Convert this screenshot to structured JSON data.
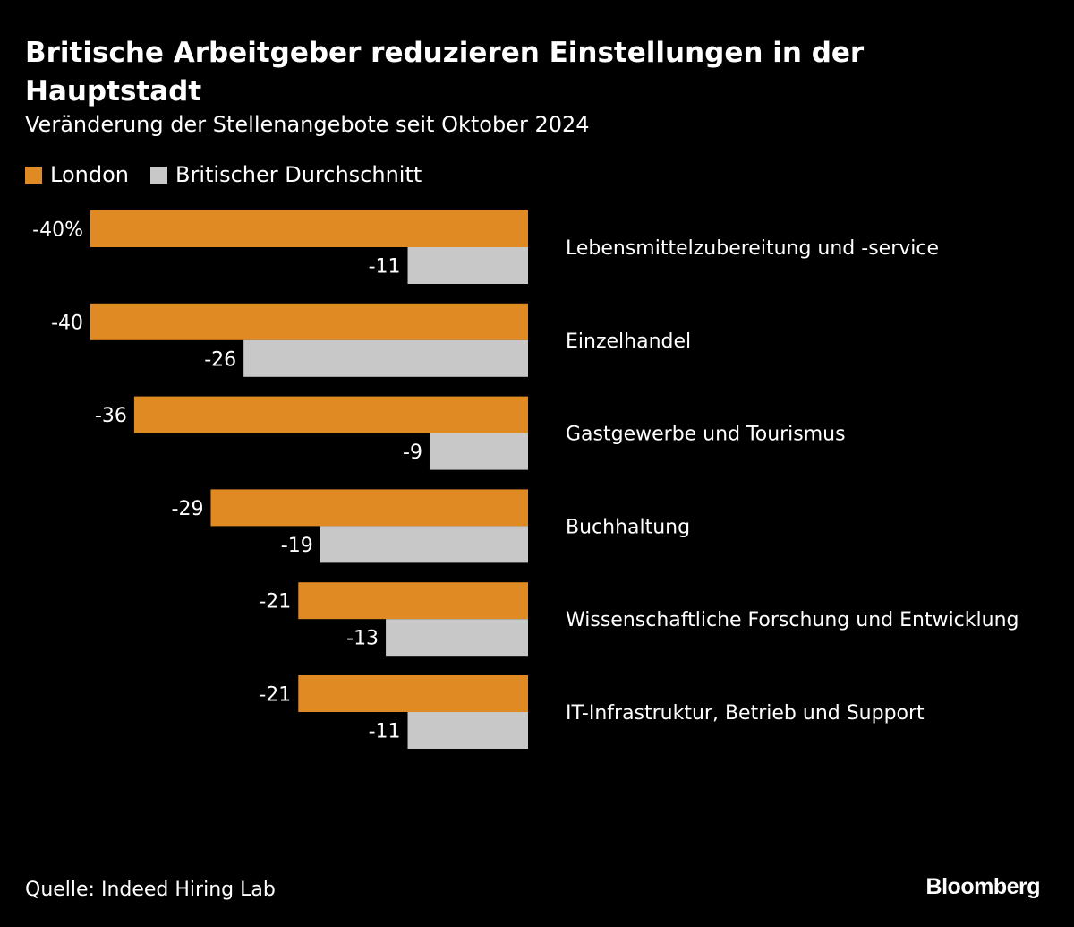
{
  "header": {
    "title": "Britische Arbeitgeber reduzieren Einstellungen in der Hauptstadt",
    "subtitle": "Veränderung der Stellenangebote seit Oktober 2024"
  },
  "legend": {
    "items": [
      {
        "label": "London",
        "color": "#e08a24"
      },
      {
        "label": "Britischer Durchschnitt",
        "color": "#c8c8c8"
      }
    ]
  },
  "footer": {
    "source": "Quelle: Indeed Hiring Lab",
    "brand": "Bloomberg"
  },
  "chart_data": {
    "type": "bar",
    "orientation": "horizontal",
    "title": "Britische Arbeitgeber reduzieren Einstellungen in der Hauptstadt",
    "subtitle": "Veränderung der Stellenangebote seit Oktober 2024",
    "categories": [
      "Lebensmittelzubereitung und -service",
      "Einzelhandel",
      "Gastgewerbe und Tourismus",
      "Buchhaltung",
      "Wissenschaftliche Forschung und Entwicklung",
      "IT-Infrastruktur, Betrieb und Support"
    ],
    "series": [
      {
        "name": "London",
        "color": "#e08a24",
        "values": [
          -40,
          -40,
          -36,
          -29,
          -21,
          -21
        ],
        "labels": [
          "-40%",
          "-40",
          "-36",
          "-29",
          "-21",
          "-21"
        ]
      },
      {
        "name": "Britischer Durchschnitt",
        "color": "#c8c8c8",
        "values": [
          -11,
          -26,
          -9,
          -19,
          -13,
          -11
        ],
        "labels": [
          "-11",
          "-26",
          "-9",
          "-19",
          "-13",
          "-11"
        ]
      }
    ],
    "xlim": [
      -40,
      0
    ],
    "grid": false,
    "legend_position": "top-left"
  }
}
